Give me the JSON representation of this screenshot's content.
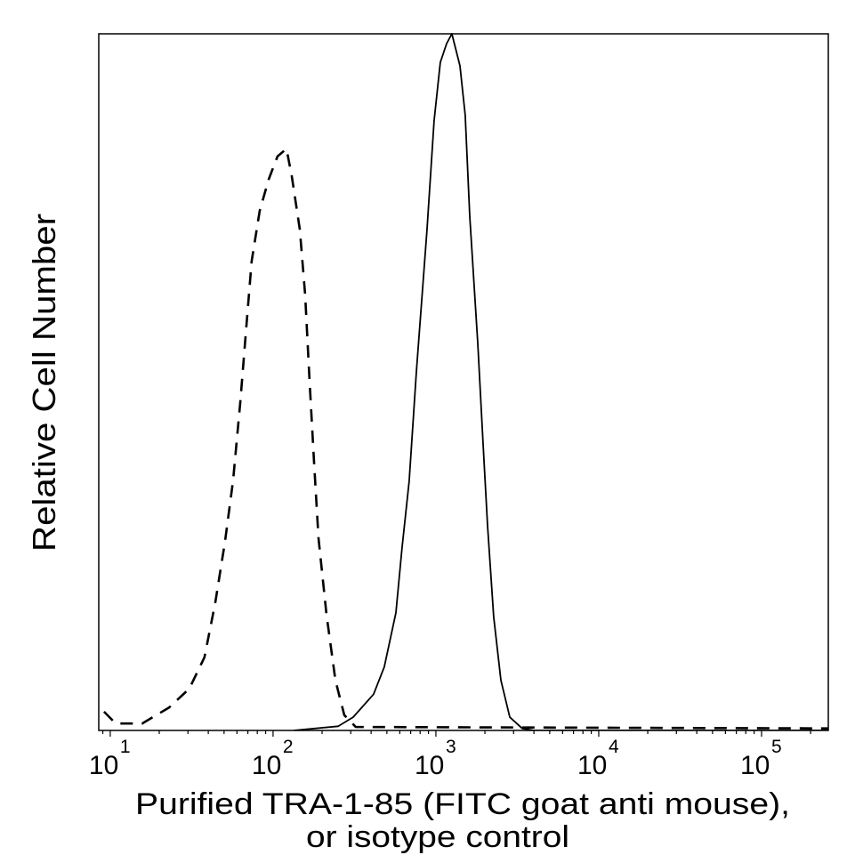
{
  "chart_data": {
    "type": "line",
    "title": "",
    "xlabel_lines": [
      "Purified TRA-1-85 (FITC goat anti mouse),",
      "or isotype control"
    ],
    "ylabel": "Relative Cell Number",
    "x_scale": "log",
    "xlim": [
      8.5,
      257000
    ],
    "ylim": [
      0,
      100
    ],
    "y_ticks_shown": false,
    "grid": false,
    "legend": "none",
    "x_ticks": [
      {
        "value": 10,
        "base": "10",
        "exp": "1"
      },
      {
        "value": 100,
        "base": "10",
        "exp": "2"
      },
      {
        "value": 1000,
        "base": "10",
        "exp": "3"
      },
      {
        "value": 10000,
        "base": "10",
        "exp": "4"
      },
      {
        "value": 100000,
        "base": "10",
        "exp": "5"
      }
    ],
    "series": [
      {
        "style": "solid",
        "color": "#000000",
        "x": [
          134,
          251,
          310,
          414,
          482,
          568,
          619,
          685,
          759,
          881,
          975,
          1064,
          1164,
          1253,
          1406,
          1514,
          1614,
          1807,
          1950,
          2075,
          2265,
          2506,
          2844,
          3388,
          3990,
          257000
        ],
        "y": [
          0,
          0.6,
          1.9,
          5.2,
          9.1,
          16.9,
          26.1,
          35.8,
          51.5,
          71.8,
          87.5,
          95.9,
          98.6,
          100,
          95.4,
          88.3,
          73.8,
          55.6,
          41.1,
          29.4,
          16.3,
          7.2,
          1.9,
          0.3,
          0,
          0
        ]
      },
      {
        "style": "dashed",
        "color": "#000000",
        "x": [
          9.16,
          10.8,
          15.7,
          23.0,
          30.6,
          37.9,
          44.1,
          50.7,
          56.8,
          62.8,
          68.5,
          73.9,
          82.8,
          94.0,
          106.4,
          120.8,
          130.2,
          145.9,
          157.4,
          167.5,
          178.3,
          190.1,
          212.8,
          241.5,
          273.8,
          322,
          257000
        ],
        "y": [
          2.7,
          1.0,
          1.0,
          3.3,
          6.0,
          10.5,
          18.3,
          27.1,
          35.9,
          47.0,
          58.0,
          67.4,
          74.6,
          79.1,
          82.4,
          83.5,
          79.6,
          71.9,
          62.5,
          50.3,
          38.7,
          27.6,
          16.6,
          7.2,
          2.2,
          0.5,
          0.3
        ]
      }
    ]
  }
}
